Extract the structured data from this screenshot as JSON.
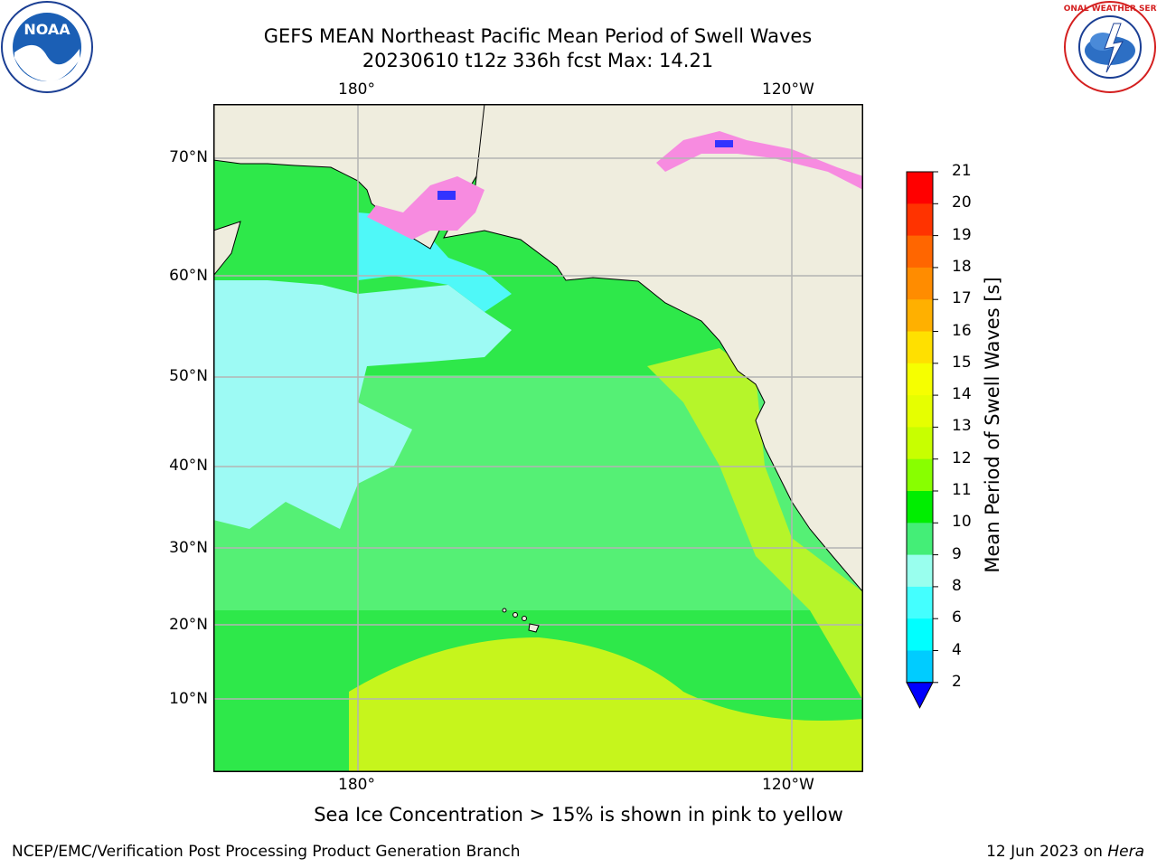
{
  "title": {
    "line1": "GEFS MEAN Northeast Pacific Mean Period of Swell Waves",
    "line2": "20230610 t12z 336h fcst   Max: 14.21"
  },
  "map": {
    "lon_labels_top": [
      "180°",
      "120°W"
    ],
    "lon_labels_bottom": [
      "180°",
      "120°W"
    ],
    "lat_labels": [
      "70°N",
      "60°N",
      "50°N",
      "40°N",
      "30°N",
      "20°N",
      "10°N"
    ],
    "colors": {
      "land": "#efedde",
      "ocean_green": "#2ee84a",
      "ocean_light": "#55f075",
      "ocean_cyan": "#9dfaf4",
      "ocean_yellow": "#c6f51c",
      "ice_pink": "#f78be0",
      "grid": "#b4b4b4"
    }
  },
  "colorbar": {
    "ticks": [
      "21",
      "20",
      "19",
      "18",
      "17",
      "16",
      "15",
      "14",
      "13",
      "12",
      "11",
      "10",
      "9",
      "8",
      "6",
      "4",
      "2"
    ],
    "colors": [
      "#ff0000",
      "#ff3300",
      "#ff6600",
      "#ff8c00",
      "#ffb000",
      "#ffe000",
      "#f6ff00",
      "#e6ff00",
      "#c8ff00",
      "#88ff00",
      "#00ee00",
      "#44ee77",
      "#99ffee",
      "#44ffff",
      "#00ffff",
      "#00ccff",
      "#0066ff"
    ],
    "extend_color": "#0000ff",
    "label": "Mean Period of Swell Waves [s]"
  },
  "caption": "Sea Ice Concentration > 15% is shown in pink to yellow",
  "footer": {
    "left": "NCEP/EMC/Verification Post Processing Product Generation Branch",
    "right_prefix": "12 Jun 2023 on ",
    "right_italic": "Hera"
  },
  "logos": {
    "noaa_text": "NOAA",
    "nws_text": "NATIONAL WEATHER SERVICE"
  }
}
